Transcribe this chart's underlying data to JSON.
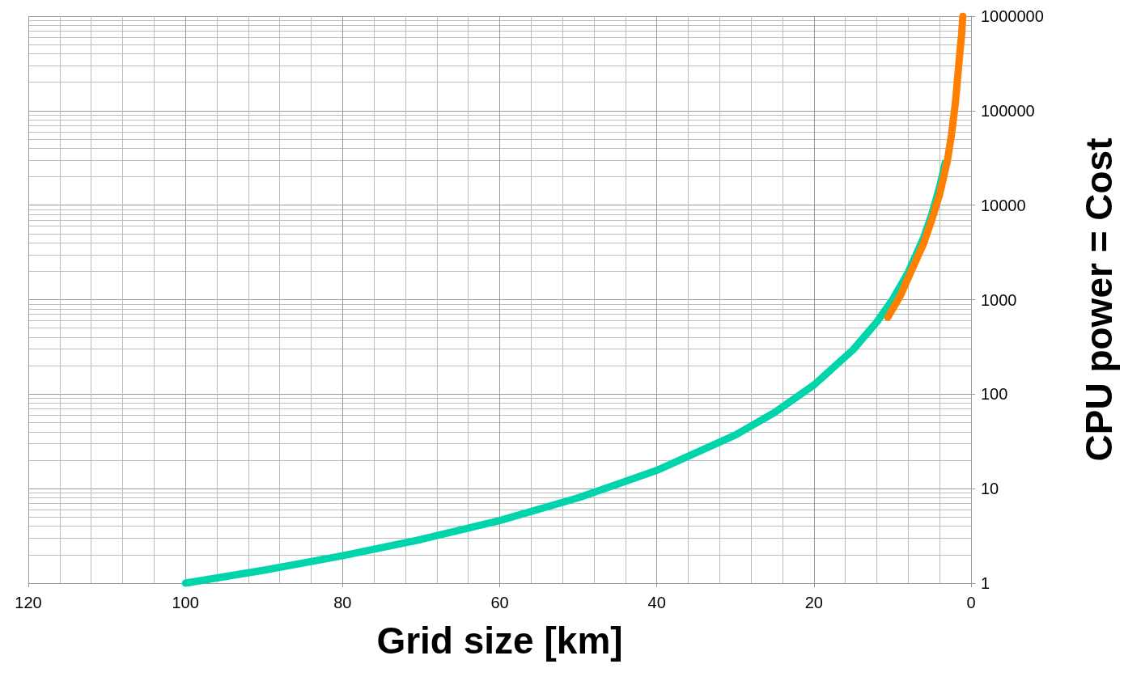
{
  "chart_data": {
    "type": "line",
    "xlabel": "Grid size [km]",
    "ylabel": "CPU power = Cost",
    "xlim": [
      120,
      0
    ],
    "xticks": [
      120,
      100,
      80,
      60,
      40,
      20,
      0
    ],
    "ylim": [
      1,
      1000000
    ],
    "yticks": [
      1,
      10,
      100,
      1000,
      10000,
      100000,
      1000000
    ],
    "log": "y",
    "grid": true,
    "marker": "none",
    "line_style": "solid",
    "series": [
      {
        "color": "#00d4aa",
        "x": [
          100,
          90,
          80,
          70,
          60,
          50,
          40,
          30,
          25,
          20,
          15,
          12,
          10,
          8,
          6,
          5,
          4,
          3.3
        ],
        "values": [
          1,
          1.37,
          1.95,
          2.9,
          4.6,
          8,
          15.6,
          37,
          64,
          125,
          296,
          580,
          1000,
          1950,
          4600,
          8000,
          15600,
          28000
        ]
      },
      {
        "color": "#ff7f00",
        "x": [
          10.6,
          9,
          8,
          7,
          6,
          5,
          4,
          3,
          2.5,
          2,
          1.5,
          1.2,
          1.05
        ],
        "values": [
          650,
          1100,
          1700,
          2600,
          4000,
          7000,
          13000,
          30000,
          55000,
          120000,
          350000,
          650000,
          1000000
        ]
      }
    ]
  }
}
